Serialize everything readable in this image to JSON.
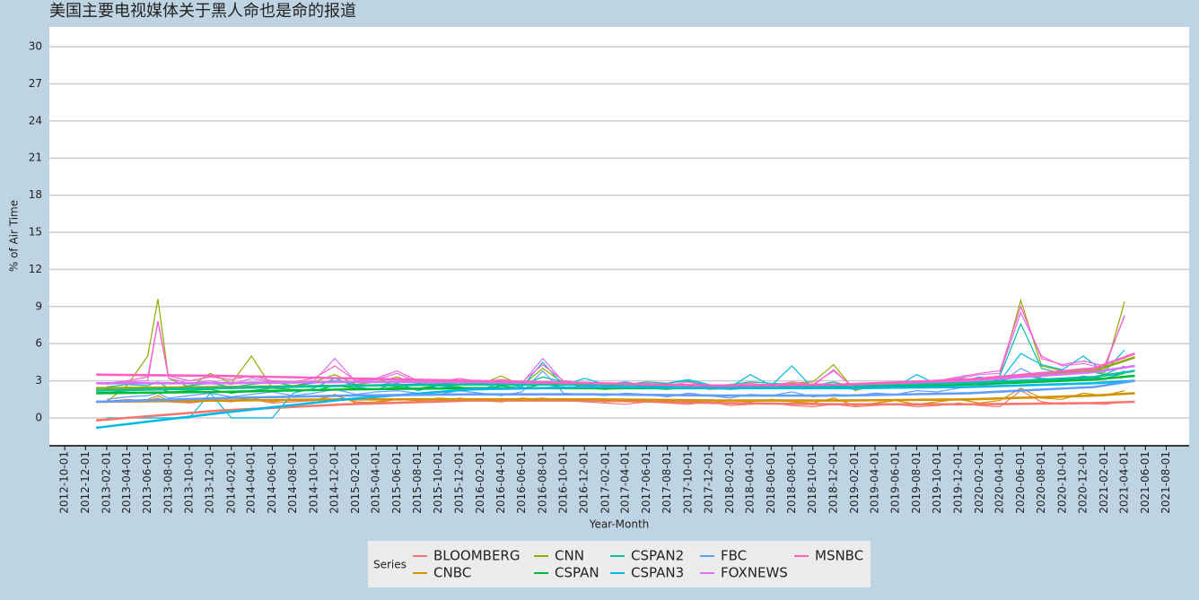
{
  "chart_data": {
    "type": "line",
    "title": "美国主要电视媒体关于黑人命也是命的报道",
    "x_label": "Year-Month",
    "y_label": "% of Air Time",
    "legend_title": "Series",
    "legend": "bottom",
    "grid": true,
    "xlim": [
      "2012-08-17",
      "2021-10-07"
    ],
    "ylim": [
      -2.25,
      31.6
    ],
    "yticks": [
      0,
      3,
      6,
      9,
      12,
      15,
      18,
      21,
      24,
      27,
      30
    ],
    "xticks": [
      "2012-10-01",
      "2012-12-01",
      "2013-02-01",
      "2013-04-01",
      "2013-06-01",
      "2013-08-01",
      "2013-10-01",
      "2013-12-01",
      "2014-02-01",
      "2014-04-01",
      "2014-06-01",
      "2014-08-01",
      "2014-10-01",
      "2014-12-01",
      "2015-02-01",
      "2015-04-01",
      "2015-06-01",
      "2015-08-01",
      "2015-10-01",
      "2015-12-01",
      "2016-02-01",
      "2016-04-01",
      "2016-06-01",
      "2016-08-01",
      "2016-10-01",
      "2016-12-01",
      "2017-02-01",
      "2017-04-01",
      "2017-06-01",
      "2017-08-01",
      "2017-10-01",
      "2017-12-01",
      "2018-02-01",
      "2018-04-01",
      "2018-06-01",
      "2018-08-01",
      "2018-10-01",
      "2018-12-01",
      "2019-02-01",
      "2019-04-01",
      "2019-06-01",
      "2019-08-01",
      "2019-10-01",
      "2019-12-01",
      "2020-02-01",
      "2020-04-01",
      "2020-06-01",
      "2020-08-01",
      "2020-10-01",
      "2020-12-01",
      "2021-02-01",
      "2021-04-01",
      "2021-06-01",
      "2021-08-01"
    ],
    "x": [
      "2013-02-01",
      "2013-04-01",
      "2013-06-01",
      "2013-07-01",
      "2013-08-01",
      "2013-10-01",
      "2013-12-01",
      "2014-02-01",
      "2014-04-01",
      "2014-06-01",
      "2014-08-01",
      "2014-10-01",
      "2014-12-01",
      "2015-02-01",
      "2015-04-01",
      "2015-06-01",
      "2015-08-01",
      "2015-10-01",
      "2015-12-01",
      "2016-02-01",
      "2016-04-01",
      "2016-06-01",
      "2016-08-01",
      "2016-10-01",
      "2016-12-01",
      "2017-02-01",
      "2017-04-01",
      "2017-06-01",
      "2017-08-01",
      "2017-10-01",
      "2017-12-01",
      "2018-02-01",
      "2018-04-01",
      "2018-06-01",
      "2018-08-01",
      "2018-10-01",
      "2018-12-01",
      "2019-02-01",
      "2019-04-01",
      "2019-06-01",
      "2019-08-01",
      "2019-10-01",
      "2019-12-01",
      "2020-02-01",
      "2020-04-01",
      "2020-06-01",
      "2020-08-01",
      "2020-10-01",
      "2020-12-01",
      "2021-02-01",
      "2021-04-01"
    ],
    "trend_x": [
      "2013-01-01",
      "2014-01-01",
      "2015-01-01",
      "2016-01-01",
      "2017-01-01",
      "2018-01-01",
      "2019-01-01",
      "2020-01-01",
      "2021-01-01",
      "2021-05-01"
    ],
    "series": [
      {
        "name": "BLOOMBERG",
        "color": "#F8766D",
        "values": [
          1.3,
          1.5,
          1.4,
          1.6,
          1.3,
          1.2,
          1.4,
          1.3,
          1.5,
          1.2,
          1.3,
          1.4,
          1.8,
          1.3,
          1.2,
          1.5,
          1.4,
          1.3,
          1.6,
          1.4,
          1.3,
          1.5,
          1.6,
          1.4,
          1.3,
          1.2,
          1.1,
          1.3,
          1.2,
          1.1,
          1.3,
          1.0,
          1.1,
          1.2,
          1.0,
          0.9,
          1.1,
          0.9,
          1.0,
          1.1,
          0.9,
          1.0,
          1.2,
          1.0,
          0.9,
          2.2,
          1.3,
          1.1,
          1.2,
          1.1,
          1.3
        ],
        "trend": [
          -0.2,
          0.6,
          1.1,
          1.4,
          1.4,
          1.2,
          1.1,
          1.1,
          1.2,
          1.3
        ]
      },
      {
        "name": "CNBC",
        "color": "#D39200",
        "values": [
          1.4,
          1.3,
          1.5,
          1.8,
          1.4,
          1.3,
          1.5,
          1.4,
          1.6,
          1.3,
          1.5,
          1.4,
          1.9,
          1.2,
          1.3,
          1.5,
          1.4,
          1.6,
          1.5,
          1.4,
          1.3,
          1.6,
          1.5,
          1.4,
          1.5,
          1.3,
          1.4,
          1.3,
          1.5,
          1.4,
          1.2,
          1.4,
          1.3,
          1.5,
          1.3,
          1.2,
          1.6,
          1.0,
          1.2,
          1.4,
          1.1,
          1.3,
          1.5,
          1.2,
          1.4,
          2.4,
          1.6,
          1.5,
          2.0,
          1.8,
          2.2
        ],
        "trend": [
          1.3,
          1.4,
          1.5,
          1.5,
          1.5,
          1.4,
          1.4,
          1.5,
          1.8,
          2.0
        ]
      },
      {
        "name": "CNN",
        "color": "#93AA00",
        "values": [
          1.3,
          2.6,
          5.0,
          9.6,
          3.2,
          2.5,
          3.6,
          2.8,
          5.0,
          2.4,
          2.6,
          2.9,
          3.5,
          2.7,
          2.9,
          3.3,
          2.8,
          2.6,
          2.9,
          2.7,
          3.4,
          2.6,
          4.0,
          2.8,
          2.5,
          2.3,
          2.4,
          2.6,
          2.5,
          2.7,
          2.3,
          2.4,
          2.6,
          2.5,
          2.8,
          2.9,
          4.3,
          2.2,
          2.6,
          2.8,
          2.5,
          2.7,
          3.0,
          3.2,
          3.4,
          9.5,
          4.2,
          3.8,
          4.0,
          3.6,
          9.4
        ],
        "trend": [
          2.4,
          2.5,
          2.6,
          2.7,
          2.7,
          2.6,
          2.7,
          3.0,
          3.8,
          4.9
        ]
      },
      {
        "name": "CSPAN",
        "color": "#00BA38",
        "values": [
          2.0,
          2.2,
          2.3,
          2.4,
          2.1,
          2.2,
          2.3,
          2.0,
          2.2,
          2.4,
          2.3,
          2.2,
          2.6,
          2.4,
          2.3,
          2.5,
          2.4,
          2.6,
          2.5,
          2.3,
          2.6,
          2.4,
          2.7,
          2.5,
          2.4,
          2.3,
          2.5,
          2.4,
          2.3,
          2.5,
          2.4,
          2.3,
          2.4,
          2.5,
          2.6,
          2.4,
          2.5,
          2.3,
          2.6,
          2.5,
          2.7,
          2.6,
          2.8,
          2.9,
          3.0,
          3.4,
          3.2,
          3.1,
          3.3,
          3.2,
          3.6
        ],
        "trend": [
          2.0,
          2.1,
          2.3,
          2.4,
          2.4,
          2.4,
          2.5,
          2.7,
          3.1,
          3.4
        ]
      },
      {
        "name": "CSPAN2",
        "color": "#00C19F",
        "values": [
          2.5,
          2.7,
          2.6,
          2.9,
          2.4,
          2.6,
          2.8,
          2.5,
          2.7,
          2.9,
          2.6,
          2.8,
          3.0,
          2.7,
          2.6,
          2.9,
          2.8,
          2.7,
          3.0,
          2.8,
          2.9,
          2.7,
          3.3,
          2.9,
          2.8,
          2.6,
          2.7,
          2.9,
          2.8,
          3.0,
          2.6,
          2.7,
          2.9,
          2.8,
          2.7,
          2.6,
          2.9,
          2.5,
          2.8,
          2.7,
          2.9,
          3.0,
          3.2,
          3.1,
          3.4,
          7.6,
          4.0,
          3.6,
          3.9,
          3.5,
          4.2
        ],
        "trend": [
          2.2,
          2.4,
          2.6,
          2.7,
          2.7,
          2.6,
          2.6,
          2.8,
          3.3,
          3.8
        ]
      },
      {
        "name": "CSPAN3",
        "color": "#00B9E3",
        "values": [
          0.0,
          0.0,
          0.0,
          0.0,
          0.0,
          0.0,
          2.0,
          0.0,
          0.0,
          0.0,
          2.0,
          2.4,
          3.2,
          2.5,
          2.3,
          2.8,
          2.2,
          2.6,
          2.4,
          2.3,
          2.8,
          2.5,
          4.5,
          2.6,
          3.2,
          2.7,
          2.9,
          2.6,
          2.8,
          3.1,
          2.7,
          2.5,
          3.5,
          2.6,
          4.2,
          2.4,
          2.6,
          2.3,
          2.8,
          2.5,
          3.5,
          2.7,
          2.9,
          3.3,
          3.0,
          5.2,
          4.3,
          3.9,
          5.0,
          3.7,
          5.5
        ],
        "trend": [
          -0.8,
          0.4,
          1.5,
          2.3,
          2.5,
          2.4,
          2.4,
          2.5,
          2.8,
          3.0
        ]
      },
      {
        "name": "FBC",
        "color": "#619CFF",
        "values": [
          1.5,
          1.7,
          1.8,
          2.0,
          1.6,
          1.8,
          2.0,
          1.7,
          1.9,
          2.1,
          1.8,
          2.0,
          2.3,
          1.9,
          2.1,
          2.2,
          2.0,
          1.9,
          2.2,
          2.0,
          1.8,
          2.1,
          3.8,
          2.0,
          1.9,
          1.8,
          2.0,
          1.9,
          1.7,
          2.0,
          1.8,
          1.6,
          1.9,
          1.8,
          2.1,
          1.7,
          1.9,
          1.8,
          2.0,
          1.9,
          2.2,
          2.1,
          2.4,
          2.6,
          2.8,
          4.0,
          3.2,
          3.0,
          3.4,
          3.1,
          3.8
        ],
        "trend": [
          1.3,
          1.6,
          1.8,
          1.9,
          1.9,
          1.8,
          1.8,
          2.0,
          2.5,
          3.0
        ]
      },
      {
        "name": "FOXNEWS",
        "color": "#DB72FB",
        "values": [
          2.7,
          2.9,
          3.0,
          7.8,
          3.2,
          2.8,
          3.0,
          2.7,
          3.2,
          2.9,
          2.8,
          3.0,
          4.8,
          2.9,
          3.1,
          3.6,
          2.9,
          2.8,
          3.0,
          2.7,
          2.9,
          2.8,
          4.8,
          2.9,
          2.6,
          2.5,
          2.4,
          2.6,
          2.5,
          2.7,
          2.4,
          2.5,
          2.6,
          2.4,
          2.7,
          2.6,
          3.9,
          2.3,
          2.6,
          2.8,
          2.7,
          2.9,
          3.2,
          3.5,
          3.6,
          8.5,
          5.0,
          4.2,
          4.4,
          4.0,
          8.3
        ],
        "trend": [
          2.8,
          2.8,
          2.9,
          2.9,
          2.8,
          2.6,
          2.7,
          3.0,
          3.7,
          4.2
        ]
      },
      {
        "name": "MSNBC",
        "color": "#FF61C3",
        "values": [
          2.8,
          3.0,
          3.3,
          7.8,
          3.4,
          3.0,
          3.3,
          3.1,
          3.4,
          3.0,
          2.9,
          3.2,
          4.2,
          3.0,
          3.2,
          3.8,
          3.0,
          2.9,
          3.2,
          2.9,
          3.1,
          2.9,
          4.3,
          3.0,
          2.8,
          2.6,
          2.7,
          2.8,
          2.6,
          2.9,
          2.5,
          2.6,
          2.8,
          2.6,
          2.9,
          2.7,
          3.8,
          2.4,
          2.7,
          2.9,
          2.8,
          3.0,
          3.3,
          3.6,
          3.8,
          9.0,
          4.8,
          4.3,
          4.6,
          4.2,
          8.2
        ],
        "trend": [
          3.5,
          3.4,
          3.2,
          3.0,
          2.8,
          2.6,
          2.7,
          3.1,
          4.0,
          5.2
        ]
      }
    ]
  }
}
